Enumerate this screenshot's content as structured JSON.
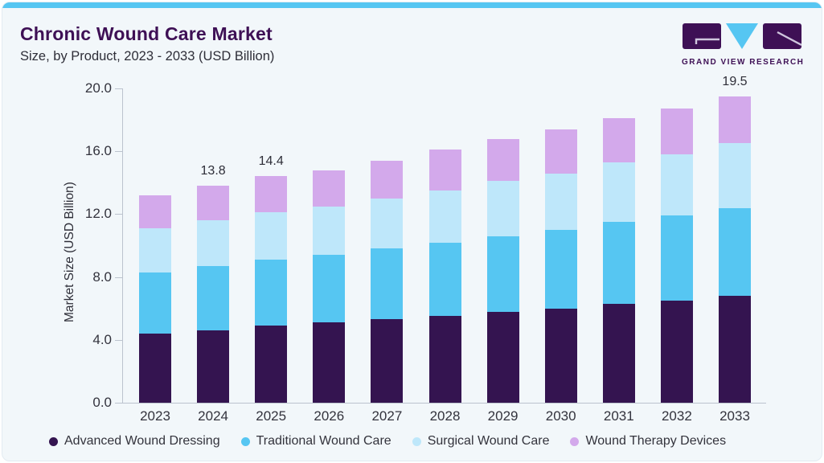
{
  "header": {
    "title": "Chronic Wound Care Market",
    "subtitle": "Size, by Product, 2023 - 2033 (USD Billion)",
    "logo_text": "GRAND VIEW RESEARCH"
  },
  "colors": {
    "accent_blue": "#56c6f2",
    "brand_purple": "#3e1055",
    "card_background": "#f2f7fa",
    "axis": "#bcc3ce",
    "text": "#2e2e38"
  },
  "chart_data": {
    "type": "bar",
    "stacked": true,
    "title": "Chronic Wound Care Market Size, by Product, 2023 - 2033 (USD Billion)",
    "xlabel": "",
    "ylabel": "Market Size (USD Billion)",
    "ylim": [
      0,
      20
    ],
    "yticks": [
      0,
      4,
      8,
      12,
      16,
      20
    ],
    "ytick_labels": [
      "0.0",
      "4.0",
      "8.0",
      "12.0",
      "16.0",
      "20.0"
    ],
    "grid": false,
    "legend_position": "bottom",
    "categories": [
      "2023",
      "2024",
      "2025",
      "2026",
      "2027",
      "2028",
      "2029",
      "2030",
      "2031",
      "2032",
      "2033"
    ],
    "series": [
      {
        "name": "Advanced Wound Dressing",
        "color": "#341450",
        "values": [
          4.4,
          4.6,
          4.9,
          5.1,
          5.3,
          5.5,
          5.8,
          6.0,
          6.3,
          6.5,
          6.8
        ]
      },
      {
        "name": "Traditional Wound Care",
        "color": "#56c6f2",
        "values": [
          3.9,
          4.1,
          4.2,
          4.3,
          4.5,
          4.7,
          4.8,
          5.0,
          5.2,
          5.4,
          5.6
        ]
      },
      {
        "name": "Surgical Wound Care",
        "color": "#bee7fa",
        "values": [
          2.8,
          2.9,
          3.0,
          3.1,
          3.2,
          3.3,
          3.5,
          3.6,
          3.8,
          3.9,
          4.1
        ]
      },
      {
        "name": "Wound Therapy Devices",
        "color": "#d3a9eb",
        "values": [
          2.1,
          2.2,
          2.3,
          2.3,
          2.4,
          2.6,
          2.7,
          2.8,
          2.8,
          2.9,
          3.0
        ]
      }
    ],
    "bar_labels": {
      "2024": "13.8",
      "2025": "14.4",
      "2033": "19.5"
    }
  }
}
